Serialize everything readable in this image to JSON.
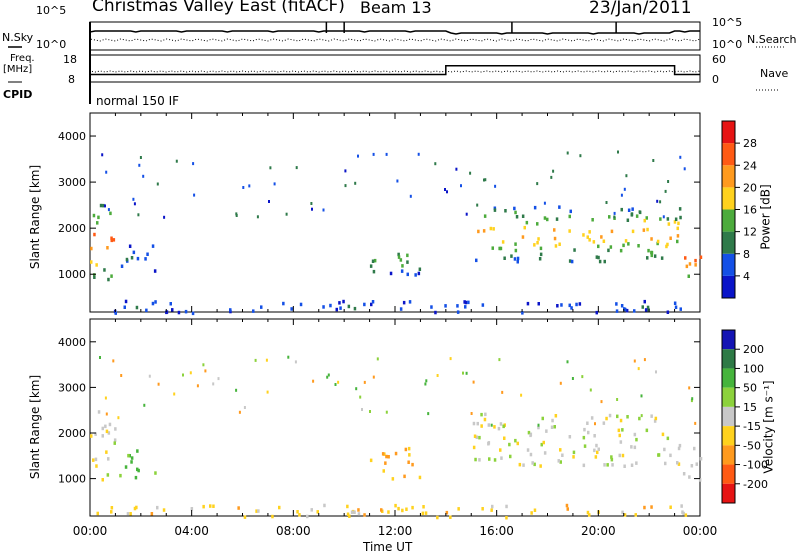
{
  "header": {
    "station": "Christmas Valley East (fitACF)",
    "beam": "Beam 13",
    "date": "23/Jan/2011"
  },
  "top_panels": {
    "nsky_label": "N.Sky",
    "nsearch_label": "N.Search",
    "noise_ticks": [
      "10^5",
      "10^0"
    ],
    "freq_label_1": "Freq.",
    "freq_label_2": "[MHz]",
    "freq_ticks": [
      "18",
      "8"
    ],
    "nave_label": "Nave",
    "nave_ticks": [
      "60",
      "0"
    ],
    "cpid_label": "CPID",
    "cpid_value": "normal 150 IF"
  },
  "axes": {
    "x_ticks": [
      "00:00",
      "04:00",
      "08:00",
      "12:00",
      "16:00",
      "20:00",
      "00:00"
    ],
    "x_label": "Time UT",
    "y_label": "Slant Range [km]",
    "y_ticks": [
      "1000",
      "2000",
      "3000",
      "4000"
    ]
  },
  "power_scale": {
    "label": "Power [dB]",
    "ticks": [
      "4",
      "8",
      "12",
      "16",
      "20",
      "24",
      "28"
    ],
    "colors": [
      "#0a14c8",
      "#1450e6",
      "#2f7a4a",
      "#4cab3c",
      "#ffd21e",
      "#ff9a1e",
      "#ff5a14",
      "#e61414"
    ]
  },
  "velocity_scale": {
    "label": "Velocity [m s⁻¹]",
    "ticks": [
      "200",
      "100",
      "50",
      "15",
      "-15",
      "-50",
      "-100",
      "-200"
    ],
    "colors": [
      "#1414b4",
      "#2e7a46",
      "#46b43c",
      "#8cd23c",
      "#c8c8c8",
      "#ffd21e",
      "#ff9a1e",
      "#ff5a14",
      "#e61414"
    ]
  },
  "chart_data": {
    "type": "heatmap",
    "x_range_hours": [
      0,
      24
    ],
    "y_range_km": [
      180,
      4500
    ],
    "freq_mhz": [
      {
        "from_hour": 0,
        "to_hour": 14,
        "value": 10.5
      },
      {
        "from_hour": 14,
        "to_hour": 23,
        "value": 14.5
      },
      {
        "from_hour": 23,
        "to_hour": 24,
        "value": 10.5
      }
    ],
    "echo_regions": [
      {
        "t_start": 0.0,
        "t_end": 1.0,
        "range_low_km": 900,
        "range_high_km": 2600,
        "power_db": 22,
        "velocity": 0
      },
      {
        "t_start": 1.0,
        "t_end": 2.6,
        "range_low_km": 1050,
        "range_high_km": 1650,
        "power_db": 8,
        "velocity": 60
      },
      {
        "t_start": 11.0,
        "t_end": 13.0,
        "range_low_km": 1000,
        "range_high_km": 1700,
        "power_db": 12,
        "velocity": -50
      },
      {
        "t_start": 15.0,
        "t_end": 23.2,
        "range_low_km": 1300,
        "range_high_km": 2500,
        "power_db": 18,
        "velocity": 0
      },
      {
        "t_start": 23.3,
        "t_end": 24.0,
        "range_low_km": 900,
        "range_high_km": 1800,
        "power_db": 22,
        "velocity": 0
      },
      {
        "t_start": 0.0,
        "t_end": 24.0,
        "range_low_km": 180,
        "range_high_km": 450,
        "power_db": 6,
        "velocity": -30
      }
    ]
  }
}
